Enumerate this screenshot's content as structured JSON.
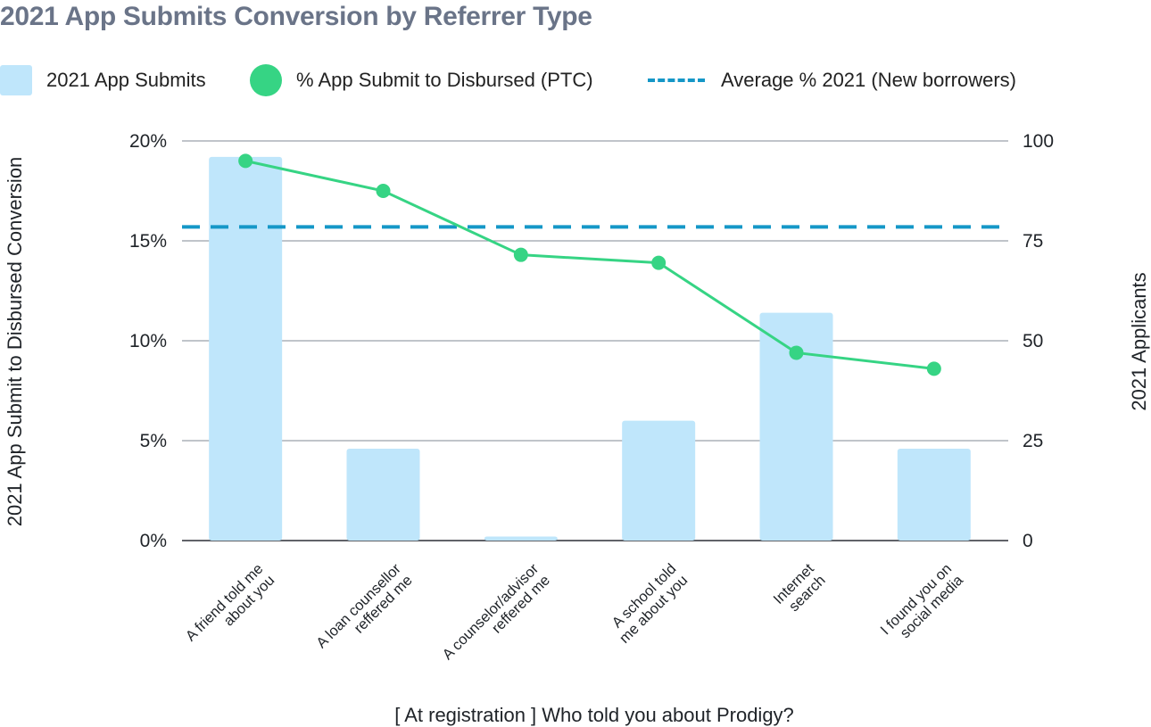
{
  "title": "2021 App Submits Conversion by Referrer Type",
  "legend": {
    "bars": "2021 App Submits",
    "line": "% App Submit to Disbursed (PTC)",
    "average": "Average % 2021 (New borrowers)"
  },
  "colors": {
    "bar": "#bfe6fb",
    "line": "#36d484",
    "average": "#1597c7",
    "grid": "#9aa0ab",
    "title": "#6a7488"
  },
  "chart_data": {
    "type": "bar",
    "title": "2021 App Submits Conversion by Referrer Type",
    "xlabel": "[ At registration ] Who told you about Prodigy?",
    "ylabel_left": "2021 App Submit to Disbursed Conversion",
    "ylabel_right": "2021 Applicants",
    "categories": [
      [
        "A friend told me",
        "about you"
      ],
      [
        "A loan counsellor",
        "reffered me"
      ],
      [
        "A counselor/advisor",
        "reffered me"
      ],
      [
        "A school told",
        "me about you"
      ],
      [
        "Internet",
        "search"
      ],
      [
        "I found you on",
        "social media"
      ]
    ],
    "left_axis": {
      "ticks": [
        "0%",
        "5%",
        "10%",
        "15%",
        "20%"
      ],
      "values": [
        0,
        5,
        10,
        15,
        20
      ],
      "ylim": [
        0,
        20
      ]
    },
    "right_axis": {
      "ticks": [
        "0",
        "25",
        "50",
        "75",
        "100"
      ],
      "values": [
        0,
        25,
        50,
        75,
        100
      ],
      "ylim": [
        0,
        100
      ]
    },
    "series": [
      {
        "name": "2021 App Submits",
        "type": "bar",
        "axis": "right",
        "values": [
          96,
          23,
          1,
          30,
          57,
          23
        ]
      },
      {
        "name": "% App Submit to Disbursed (PTC)",
        "type": "line",
        "axis": "left",
        "values": [
          19.0,
          17.5,
          14.3,
          13.9,
          9.4,
          8.6
        ]
      },
      {
        "name": "Average % 2021 (New borrowers)",
        "type": "hline",
        "axis": "left",
        "value": 15.7
      }
    ],
    "grid": true,
    "legend_position": "top-left"
  }
}
